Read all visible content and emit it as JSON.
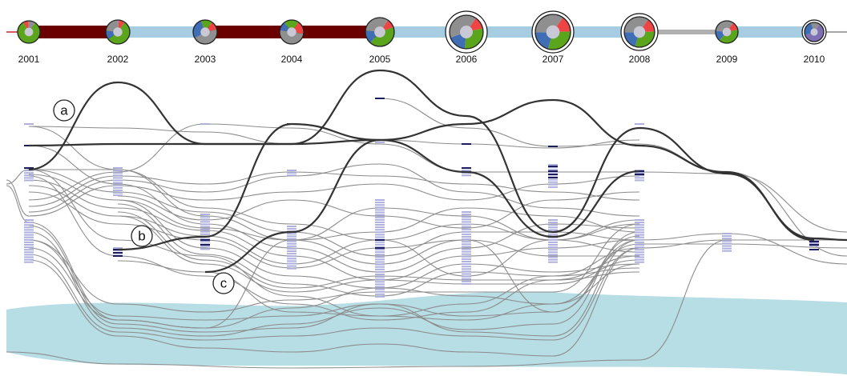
{
  "timeline": {
    "years": [
      "2001",
      "2002",
      "2003",
      "2004",
      "2005",
      "2006",
      "2007",
      "2008",
      "2009",
      "2010"
    ],
    "segment_colors": [
      "#6b0000",
      "#a7cde3",
      "#6b0000",
      "#6b0000",
      "#a7cde3",
      "#a7cde3",
      "#a7cde3",
      "#b0b0b0",
      "#a7cde3"
    ]
  },
  "colors": {
    "dark_red": "#6b0000",
    "light_blue": "#a7cde3",
    "gray": "#b0b0b0",
    "pie_green": "#5aa51c",
    "pie_red": "#ee4444",
    "pie_blue": "#3f6eb5",
    "pie_gray": "#8f8f8f",
    "pie_purple": "#7e6fb3",
    "lane_fill": "#b7dde5",
    "marker_dark": "#1d1d5e",
    "marker_light": "#aeb0de"
  },
  "callouts": {
    "a": "a",
    "b": "b",
    "c": "c"
  }
}
